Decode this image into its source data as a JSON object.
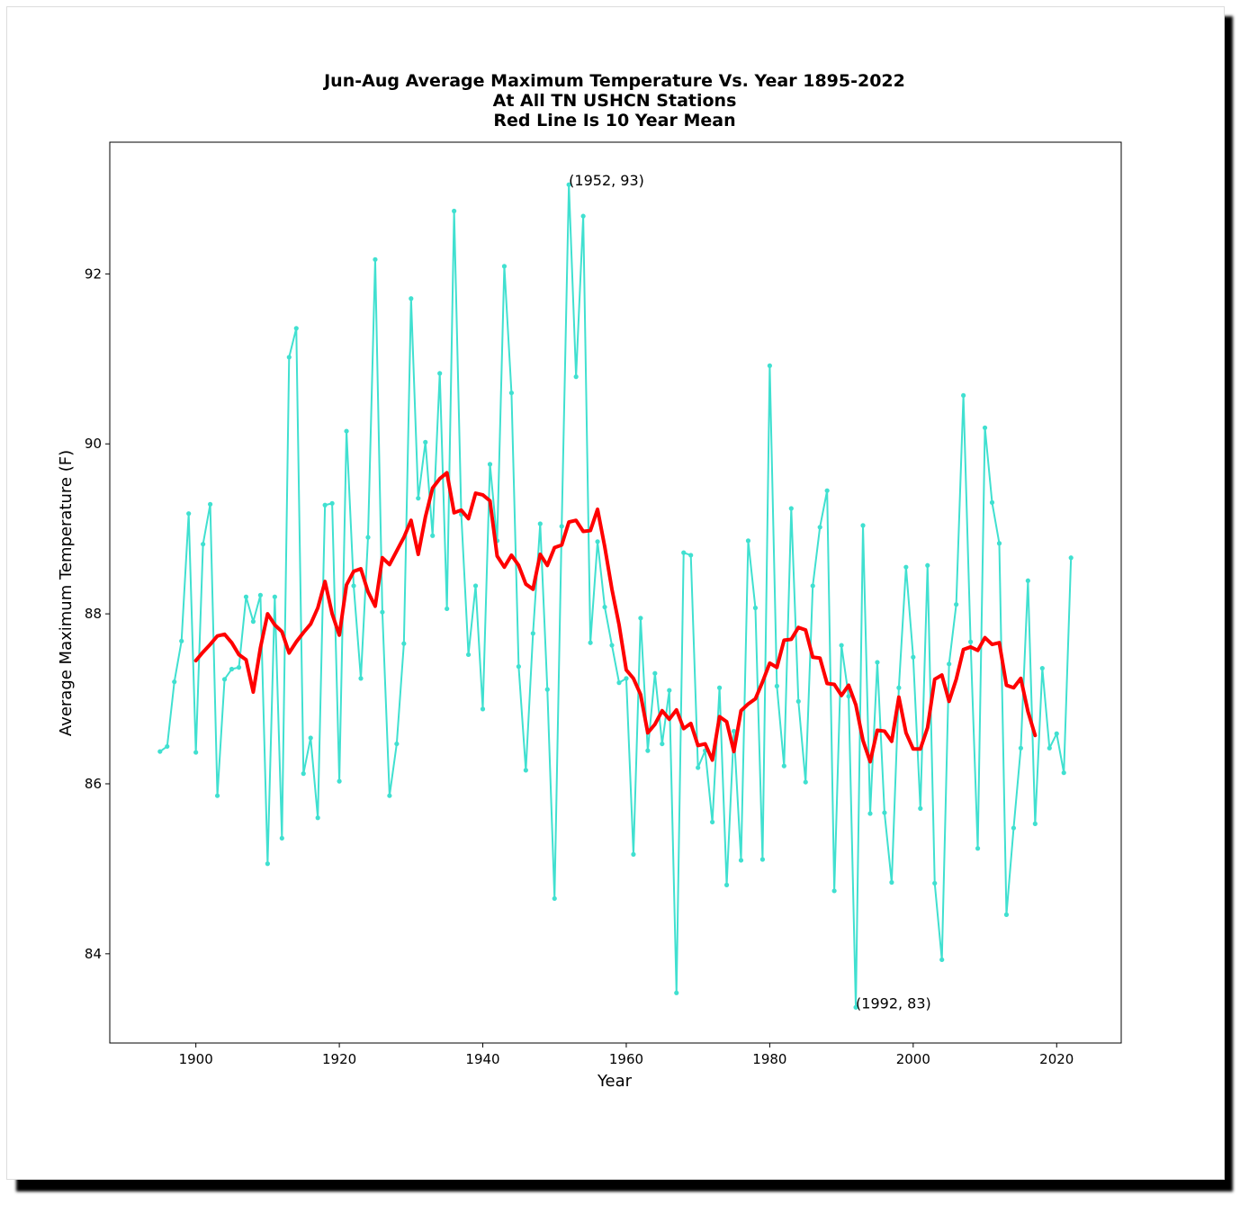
{
  "chart_data": {
    "type": "line",
    "title_lines": [
      "Jun-Aug Average Maximum Temperature Vs. Year 1895-2022",
      "At All TN USHCN Stations",
      "Red Line Is 10 Year Mean"
    ],
    "xlabel": "Year",
    "ylabel": "Average Maximum Temperature (F)",
    "xlim": [
      1888,
      2029
    ],
    "ylim": [
      82.95,
      93.55
    ],
    "xticks": [
      "1900",
      "1920",
      "1940",
      "1960",
      "1980",
      "2000",
      "2020"
    ],
    "yticks": [
      "84",
      "86",
      "88",
      "90",
      "92"
    ],
    "grid": false,
    "legend": "none",
    "annotations": [
      {
        "text": "(1952, 93)",
        "x": 1952,
        "y": 93.05
      },
      {
        "text": "(1992, 83)",
        "x": 1992,
        "y": 83.37
      }
    ],
    "series": [
      {
        "color": "#40e0d0",
        "marker": "dot",
        "start_year": 1895,
        "values": [
          86.38,
          86.44,
          87.2,
          87.68,
          89.18,
          86.37,
          88.82,
          89.29,
          85.86,
          87.23,
          87.35,
          87.37,
          88.2,
          87.91,
          88.22,
          85.06,
          88.2,
          85.36,
          91.02,
          91.36,
          86.12,
          86.54,
          85.6,
          89.28,
          89.3,
          86.03,
          90.15,
          88.33,
          87.24,
          88.9,
          92.17,
          88.02,
          85.86,
          86.47,
          87.65,
          91.71,
          89.36,
          90.02,
          88.92,
          90.83,
          88.06,
          92.74,
          89.17,
          87.52,
          88.33,
          86.88,
          89.76,
          88.86,
          92.09,
          90.6,
          87.38,
          86.16,
          87.77,
          89.06,
          87.11,
          84.65,
          89.03,
          93.05,
          90.79,
          92.68,
          87.66,
          88.85,
          88.08,
          87.63,
          87.19,
          87.24,
          85.17,
          87.95,
          86.39,
          87.3,
          86.47,
          87.1,
          83.54,
          88.72,
          88.69,
          86.19,
          86.39,
          85.55,
          87.13,
          84.81,
          86.62,
          85.1,
          88.86,
          88.07,
          85.11,
          90.92,
          87.15,
          86.21,
          89.24,
          86.97,
          86.02,
          88.33,
          89.02,
          89.45,
          84.74,
          87.63,
          87.03,
          83.37,
          89.04,
          85.65,
          87.43,
          85.66,
          84.84,
          87.13,
          88.55,
          87.49,
          85.71,
          88.57,
          84.83,
          83.93,
          87.41,
          88.11,
          90.57,
          87.67,
          85.24,
          90.19,
          89.31,
          88.83,
          84.46,
          85.48,
          86.42,
          88.39,
          85.53,
          87.36,
          86.42,
          86.59,
          86.13,
          88.66
        ]
      },
      {
        "color": "#ff0000",
        "marker": "none",
        "start_year": 1900,
        "values": [
          87.45,
          87.55,
          87.64,
          87.74,
          87.76,
          87.66,
          87.52,
          87.46,
          87.08,
          87.6,
          88.0,
          87.87,
          87.79,
          87.54,
          87.67,
          87.78,
          87.88,
          88.07,
          88.38,
          88.0,
          87.75,
          88.34,
          88.5,
          88.53,
          88.26,
          88.09,
          88.66,
          88.58,
          88.74,
          88.9,
          89.1,
          88.7,
          89.14,
          89.48,
          89.59,
          89.66,
          89.19,
          89.22,
          89.12,
          89.42,
          89.4,
          89.33,
          88.68,
          88.55,
          88.69,
          88.57,
          88.35,
          88.29,
          88.7,
          88.57,
          88.78,
          88.81,
          89.08,
          89.1,
          88.97,
          88.98,
          89.23,
          88.79,
          88.29,
          87.87,
          87.34,
          87.24,
          87.05,
          86.6,
          86.7,
          86.86,
          86.76,
          86.87,
          86.65,
          86.71,
          86.45,
          86.47,
          86.28,
          86.79,
          86.73,
          86.38,
          86.86,
          86.94,
          87.0,
          87.2,
          87.42,
          87.37,
          87.69,
          87.7,
          87.84,
          87.81,
          87.49,
          87.48,
          87.18,
          87.17,
          87.04,
          87.16,
          86.93,
          86.51,
          86.26,
          86.63,
          86.62,
          86.5,
          87.02,
          86.6,
          86.41,
          86.41,
          86.66,
          87.23,
          87.28,
          86.97,
          87.23,
          87.58,
          87.61,
          87.57,
          87.72,
          87.64,
          87.66,
          87.16,
          87.13,
          87.24,
          86.85,
          86.57
        ]
      }
    ]
  }
}
